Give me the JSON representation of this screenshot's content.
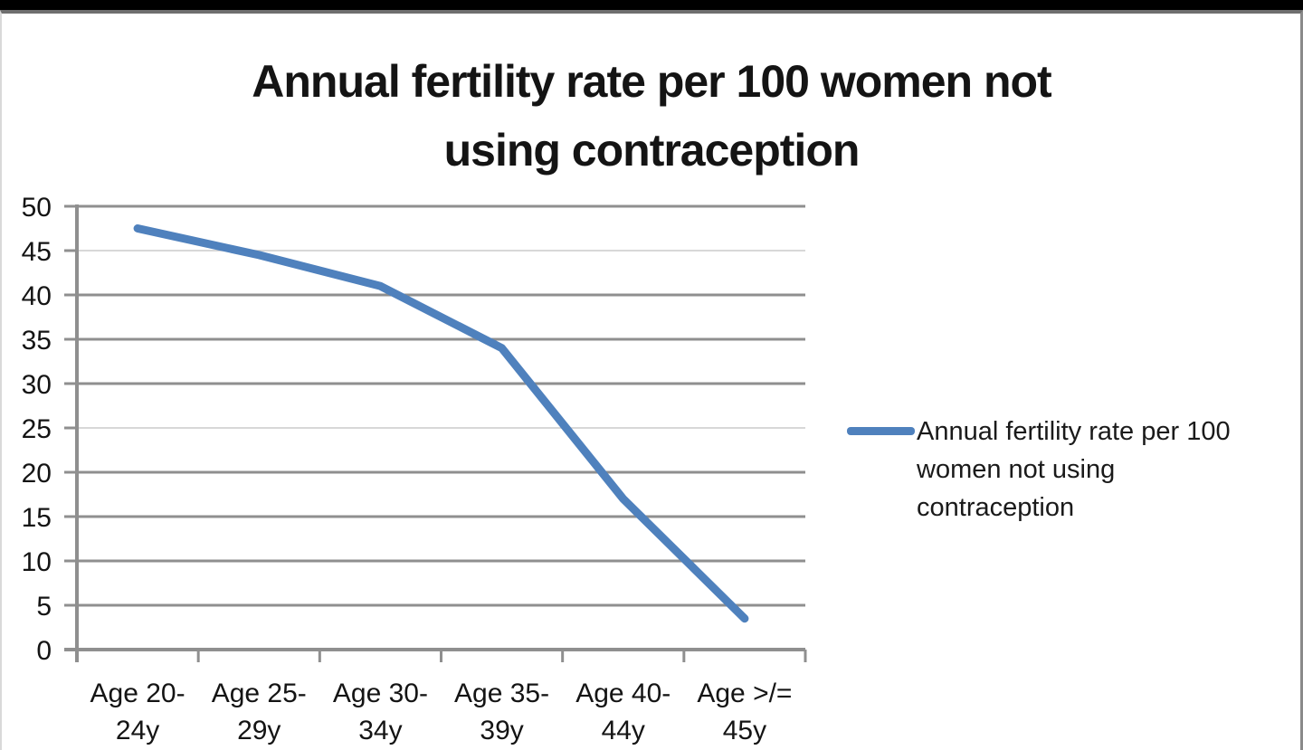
{
  "window": {
    "top_bar_color": "#000000"
  },
  "chart_data": {
    "type": "line",
    "title": "Annual fertility rate per 100 women not using contraception",
    "title_lines": [
      "Annual fertility rate per 100 women not",
      "using contraception"
    ],
    "categories": [
      "Age 20-24y",
      "Age 25-29y",
      "Age 30-34y",
      "Age 35-39y",
      "Age 40-44y",
      "Age >/= 45y"
    ],
    "category_tick_lines": [
      [
        "Age 20-",
        "24y"
      ],
      [
        "Age 25-",
        "29y"
      ],
      [
        "Age 30-",
        "34y"
      ],
      [
        "Age 35-",
        "39y"
      ],
      [
        "Age 40-",
        "44y"
      ],
      [
        "Age >/=",
        "45y"
      ]
    ],
    "series": [
      {
        "name": "Annual fertility rate per 100 women not using contraception",
        "values": [
          47.5,
          44.5,
          41,
          34,
          17,
          3.5
        ],
        "color": "#4F81BD"
      }
    ],
    "xlabel": "",
    "ylabel": "",
    "ylim": [
      0,
      50
    ],
    "yticks": [
      0,
      5,
      10,
      15,
      20,
      25,
      30,
      35,
      40,
      45,
      50
    ],
    "grid": true,
    "gridline_color": "#8F8F8F",
    "light_gridlines": [
      25,
      45
    ],
    "light_gridline_color": "#CBCBCB",
    "axis_color": "#8F8F8F",
    "tick_label_color": "#141414",
    "legend": {
      "position": "right",
      "label": "Annual fertility rate per 100 women not using contraception",
      "lines": [
        "Annual fertility rate per 100",
        "women not using",
        "contraception"
      ]
    }
  }
}
